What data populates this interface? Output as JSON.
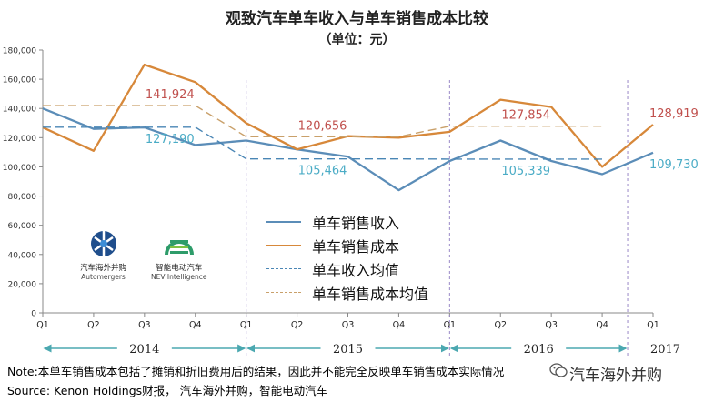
{
  "title": "观致汽车单车收入与单车销售成本比较",
  "subtitle": "（单位：元）",
  "chart_data": {
    "type": "line",
    "categories": [
      "Q1",
      "Q2",
      "Q3",
      "Q4",
      "Q1",
      "Q2",
      "Q3",
      "Q4",
      "Q1",
      "Q2",
      "Q3",
      "Q4",
      "Q1"
    ],
    "years": [
      {
        "label": "2014",
        "start": 0,
        "end": 3
      },
      {
        "label": "2015",
        "start": 4,
        "end": 7
      },
      {
        "label": "2016",
        "start": 8,
        "end": 11
      },
      {
        "label": "2017",
        "start": 12,
        "end": 12
      }
    ],
    "ylim": [
      0,
      180000
    ],
    "ytick_step": 20000,
    "yticks": [
      "0",
      "20,000",
      "40,000",
      "60,000",
      "80,000",
      "100,000",
      "120,000",
      "140,000",
      "160,000",
      "180,000"
    ],
    "grid": false,
    "series": [
      {
        "name": "单车销售收入",
        "color": "#5B8DB8",
        "style": "solid",
        "values": [
          140000,
          126000,
          127000,
          115000,
          118000,
          112000,
          107000,
          84000,
          104000,
          118000,
          104000,
          95000,
          109730
        ]
      },
      {
        "name": "单车销售成本",
        "color": "#D7883A",
        "style": "solid",
        "values": [
          127000,
          111000,
          170000,
          158000,
          130000,
          112000,
          121000,
          120000,
          124000,
          146000,
          141000,
          100000,
          128919
        ]
      },
      {
        "name": "单车收入均值",
        "color": "#4A86B5",
        "style": "dashed",
        "values": [
          127190,
          127190,
          127190,
          127190,
          105464,
          105464,
          105464,
          105464,
          105339,
          105339,
          105339,
          105339,
          null
        ]
      },
      {
        "name": "单车销售成本均值",
        "color": "#C9A06A",
        "style": "dashed",
        "values": [
          141924,
          141924,
          141924,
          141924,
          120656,
          120656,
          120656,
          120656,
          127854,
          127854,
          127854,
          127854,
          null
        ]
      }
    ],
    "annotations": [
      {
        "text": "141,924",
        "color": "#C0504D",
        "x": 3.0,
        "y": 141924
      },
      {
        "text": "127,190",
        "color": "#4BACC6",
        "x": 3.0,
        "y": 127190
      },
      {
        "text": "120,656",
        "color": "#C0504D",
        "x": 6.0,
        "y": 120656
      },
      {
        "text": "105,464",
        "color": "#4BACC6",
        "x": 6.0,
        "y": 105464
      },
      {
        "text": "127,854",
        "color": "#C0504D",
        "x": 10.0,
        "y": 127854
      },
      {
        "text": "105,339",
        "color": "#4BACC6",
        "x": 10.0,
        "y": 105339
      },
      {
        "text": "128,919",
        "color": "#C0504D",
        "x": 12.9,
        "y": 128919
      },
      {
        "text": "109,730",
        "color": "#4BACC6",
        "x": 12.9,
        "y": 109730
      }
    ],
    "legend_position": "center"
  },
  "logos": {
    "automergers_cn": "汽车海外并购",
    "automergers_en": "Automergers",
    "nev_cn": "智能电动汽车",
    "nev_en": "NEV Intelligence"
  },
  "notes": {
    "line1": "Note:本单车销售成本包括了摊销和折旧费用后的结果，因此并不能完全反映单车销售成本实际情况",
    "line2": "Source: Kenon Holdings财报， 汽车海外并购，智能电动汽车"
  },
  "watermark": "汽车海外并购"
}
